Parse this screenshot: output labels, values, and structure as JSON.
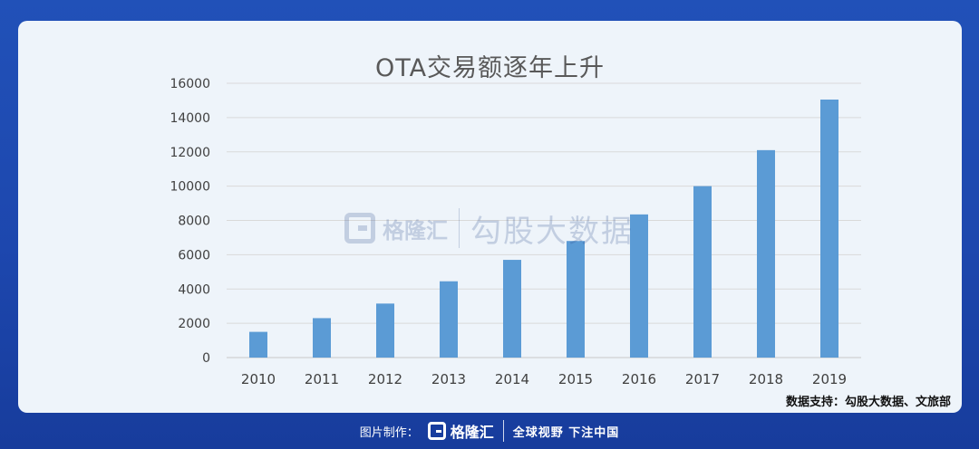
{
  "chart_data": {
    "type": "bar",
    "title": "OTA交易额逐年上升",
    "categories": [
      "2010",
      "2011",
      "2012",
      "2013",
      "2014",
      "2015",
      "2016",
      "2017",
      "2018",
      "2019"
    ],
    "values": [
      1500,
      2300,
      3150,
      4450,
      5700,
      6800,
      8350,
      10000,
      12100,
      15050
    ],
    "y_ticks": [
      "0",
      "2000",
      "4000",
      "6000",
      "8000",
      "10000",
      "12000",
      "14000",
      "16000"
    ],
    "ylim": [
      0,
      16000
    ],
    "xlabel": "",
    "ylabel": "",
    "grid": true,
    "bar_color": "#5b9bd5"
  },
  "source_note": "数据支持：勾股大数据、文旅部",
  "watermark": {
    "brand": "格隆汇",
    "text": "勾股大数据"
  },
  "footer": {
    "label": "图片制作：",
    "brand": "格隆汇",
    "slogan": "全球视野 下注中国"
  }
}
